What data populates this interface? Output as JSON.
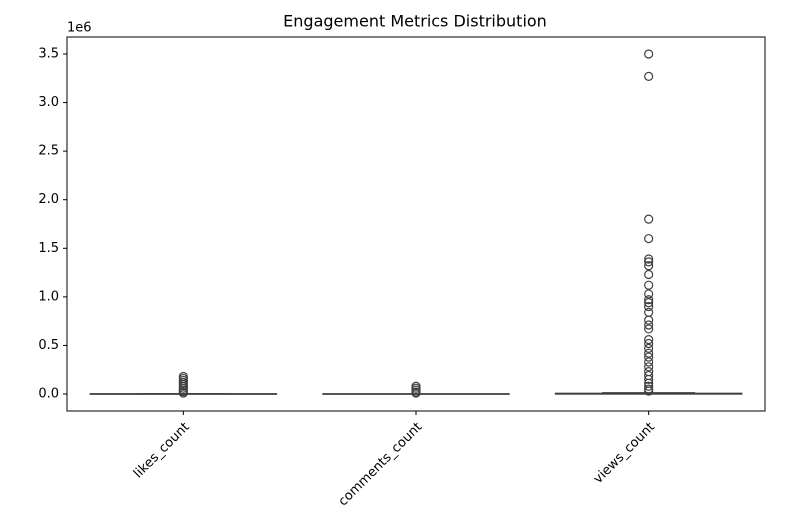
{
  "chart_data": {
    "type": "box",
    "title": "Engagement Metrics Distribution",
    "y_offset_label": "1e6",
    "categories": [
      "likes_count",
      "comments_count",
      "views_count"
    ],
    "color": "#3f3f3f",
    "boxes": [
      {
        "whislo": 0,
        "q1": 0,
        "med": 0.0002,
        "q3": 0.0008,
        "whishi": 0.002,
        "fliers": [
          0.18,
          0.16,
          0.14,
          0.12,
          0.1,
          0.08,
          0.06,
          0.04,
          0.025,
          0.01
        ]
      },
      {
        "whislo": 0,
        "q1": 0,
        "med": 0,
        "q3": 0.0001,
        "whishi": 0.0003,
        "fliers": [
          0.08,
          0.06,
          0.04,
          0.02,
          0.01
        ]
      },
      {
        "whislo": 0,
        "q1": 0.0005,
        "med": 0.002,
        "q3": 0.006,
        "whishi": 0.014,
        "fliers": [
          3.5,
          3.27,
          1.8,
          1.6,
          1.39,
          1.36,
          1.32,
          1.23,
          1.12,
          1.03,
          0.97,
          0.94,
          0.9,
          0.84,
          0.76,
          0.71,
          0.67,
          0.56,
          0.52,
          0.47,
          0.42,
          0.38,
          0.33,
          0.28,
          0.23,
          0.19,
          0.15,
          0.11,
          0.08,
          0.05,
          0.03
        ]
      }
    ],
    "ylim": [
      -0.175,
      3.675
    ],
    "yticks": [
      {
        "value": 0,
        "label": "0.0"
      },
      {
        "value": 0.5,
        "label": "0.5"
      },
      {
        "value": 1,
        "label": "1.0"
      },
      {
        "value": 1.5,
        "label": "1.5"
      },
      {
        "value": 2,
        "label": "2.0"
      },
      {
        "value": 2.5,
        "label": "2.5"
      },
      {
        "value": 3,
        "label": "3.0"
      },
      {
        "value": 3.5,
        "label": "3.5"
      }
    ],
    "grid": false
  }
}
